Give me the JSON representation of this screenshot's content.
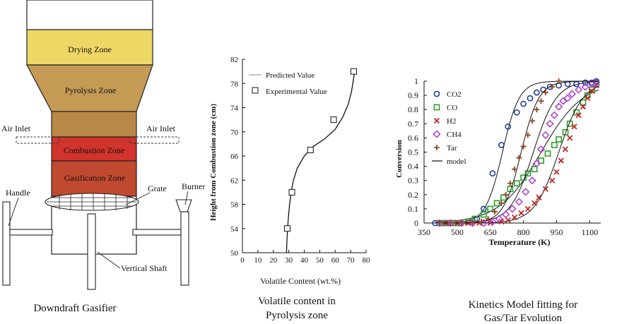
{
  "gasifier": {
    "caption": "Downdraft Gasifier",
    "zones": {
      "drying": "Drying Zone",
      "pyrolysis": "Pyrolysis Zone",
      "combustion": "Combustion  Zone",
      "gasification": "Gasification  Zone"
    },
    "labels": {
      "air_inlet_left": "Air Inlet",
      "air_inlet_right": "Air Inlet",
      "handle": "Handle",
      "grate": "Grate",
      "burner": "Burner",
      "vertical_shaft": "Vertical Shaft"
    },
    "colors": {
      "drying": "#efd766",
      "pyrolysis": "#c49a55",
      "upper_body": "#b88846",
      "combustion": "#d0342c",
      "gasification": "#c0492f"
    }
  },
  "chart_data": [
    {
      "type": "scatter",
      "caption": "Volatile content in Pyrolysis zone",
      "xlabel": "Volatile Content (wt.%)",
      "ylabel": "Height from Combustion zone (cm)",
      "xlim": [
        0,
        80
      ],
      "ylim": [
        50,
        82
      ],
      "xticks": [
        0,
        10,
        20,
        30,
        40,
        50,
        60,
        70,
        80
      ],
      "yticks": [
        50,
        54,
        58,
        62,
        66,
        70,
        74,
        78,
        82
      ],
      "legend": [
        "Predicted Value",
        "Experimental Value"
      ],
      "legend_position": "top-left",
      "grid": false,
      "series": [
        {
          "name": "Predicted Value",
          "kind": "line",
          "points": [
            [
              28.5,
              50
            ],
            [
              28.8,
              52
            ],
            [
              29.2,
              54
            ],
            [
              29.8,
              56
            ],
            [
              30.5,
              58
            ],
            [
              31.5,
              60
            ],
            [
              33.0,
              62
            ],
            [
              35.5,
              64
            ],
            [
              40.0,
              66
            ],
            [
              46.0,
              67.6
            ],
            [
              53.0,
              68.8
            ],
            [
              60.0,
              70.4
            ],
            [
              65.0,
              72.5
            ],
            [
              68.5,
              74.6
            ],
            [
              70.5,
              76.6
            ],
            [
              71.8,
              78.6
            ],
            [
              72.5,
              80
            ]
          ]
        },
        {
          "name": "Experimental Value",
          "kind": "markers",
          "points": [
            [
              29,
              54
            ],
            [
              32,
              60
            ],
            [
              44,
              67
            ],
            [
              59,
              72
            ],
            [
              72,
              80
            ]
          ]
        }
      ]
    },
    {
      "type": "scatter",
      "caption": "Kinetics Model fitting for Gas/Tar Evolution",
      "xlabel": "Temperature (K)",
      "ylabel": "Conversion",
      "xlim": [
        350,
        1150
      ],
      "ylim": [
        0,
        1
      ],
      "xticks": [
        350,
        500,
        650,
        800,
        950,
        1100
      ],
      "yticks": [
        0,
        0.1,
        0.2,
        0.3,
        0.4,
        0.5,
        0.6,
        0.7,
        0.8,
        0.9,
        1
      ],
      "legend": [
        "CO2",
        "CO",
        "H2",
        "CH4",
        "Tar",
        "model"
      ],
      "legend_position": "top-left",
      "grid": false,
      "series": [
        {
          "name": "CO2",
          "marker": "circle",
          "color": "#1f3f9f",
          "mid": 705,
          "width": 38,
          "points": [
            [
              400,
              0
            ],
            [
              430,
              0
            ],
            [
              460,
              0
            ],
            [
              490,
              0
            ],
            [
              520,
              0
            ],
            [
              550,
              0.01
            ],
            [
              590,
              0.03
            ],
            [
              620,
              0.1
            ],
            [
              660,
              0.35
            ],
            [
              700,
              0.55
            ],
            [
              730,
              0.68
            ],
            [
              770,
              0.78
            ],
            [
              800,
              0.84
            ],
            [
              830,
              0.88
            ],
            [
              860,
              0.92
            ],
            [
              890,
              0.94
            ],
            [
              920,
              0.96
            ],
            [
              960,
              0.97
            ],
            [
              1000,
              0.98
            ],
            [
              1040,
              0.98
            ],
            [
              1080,
              0.99
            ],
            [
              1110,
              0.99
            ],
            [
              1130,
              1
            ]
          ]
        },
        {
          "name": "CO",
          "marker": "square",
          "color": "#2ea02c",
          "mid": 880,
          "width": 95,
          "points": [
            [
              420,
              0
            ],
            [
              450,
              0
            ],
            [
              480,
              0
            ],
            [
              510,
              0
            ],
            [
              550,
              0.01
            ],
            [
              580,
              0.03
            ],
            [
              620,
              0.06
            ],
            [
              650,
              0.1
            ],
            [
              680,
              0.14
            ],
            [
              710,
              0.18
            ],
            [
              740,
              0.24
            ],
            [
              770,
              0.28
            ],
            [
              800,
              0.32
            ],
            [
              820,
              0.35
            ],
            [
              850,
              0.38
            ],
            [
              880,
              0.44
            ],
            [
              910,
              0.49
            ],
            [
              940,
              0.55
            ],
            [
              960,
              0.59
            ],
            [
              990,
              0.64
            ],
            [
              1010,
              0.7
            ],
            [
              1040,
              0.78
            ],
            [
              1070,
              0.85
            ],
            [
              1090,
              0.9
            ],
            [
              1110,
              0.94
            ],
            [
              1130,
              0.98
            ]
          ]
        },
        {
          "name": "H2",
          "marker": "x",
          "color": "#c0282a",
          "mid": 960,
          "width": 55,
          "points": [
            [
              450,
              0
            ],
            [
              500,
              0
            ],
            [
              550,
              0
            ],
            [
              600,
              0
            ],
            [
              650,
              0
            ],
            [
              700,
              0.01
            ],
            [
              730,
              0.02
            ],
            [
              760,
              0.04
            ],
            [
              790,
              0.07
            ],
            [
              820,
              0.1
            ],
            [
              850,
              0.14
            ],
            [
              870,
              0.18
            ],
            [
              900,
              0.24
            ],
            [
              930,
              0.3
            ],
            [
              950,
              0.36
            ],
            [
              970,
              0.44
            ],
            [
              990,
              0.52
            ],
            [
              1010,
              0.6
            ],
            [
              1030,
              0.68
            ],
            [
              1050,
              0.76
            ],
            [
              1070,
              0.82
            ],
            [
              1090,
              0.88
            ],
            [
              1110,
              0.93
            ],
            [
              1130,
              0.97
            ]
          ]
        },
        {
          "name": "CH4",
          "marker": "diamond",
          "color": "#b03ad0",
          "mid": 845,
          "width": 52,
          "points": [
            [
              420,
              0
            ],
            [
              470,
              0
            ],
            [
              520,
              0
            ],
            [
              570,
              0
            ],
            [
              620,
              0
            ],
            [
              660,
              0.01
            ],
            [
              690,
              0.03
            ],
            [
              720,
              0.06
            ],
            [
              750,
              0.1
            ],
            [
              780,
              0.15
            ],
            [
              810,
              0.22
            ],
            [
              840,
              0.3
            ],
            [
              860,
              0.42
            ],
            [
              880,
              0.52
            ],
            [
              900,
              0.62
            ],
            [
              920,
              0.7
            ],
            [
              940,
              0.76
            ],
            [
              960,
              0.82
            ],
            [
              980,
              0.86
            ],
            [
              1000,
              0.88
            ],
            [
              1020,
              0.91
            ],
            [
              1050,
              0.94
            ],
            [
              1080,
              0.96
            ],
            [
              1110,
              0.98
            ],
            [
              1130,
              0.99
            ]
          ]
        },
        {
          "name": "Tar",
          "marker": "plus",
          "color": "#8a4a28",
          "mid": 790,
          "width": 40,
          "points": [
            [
              420,
              0
            ],
            [
              470,
              0
            ],
            [
              520,
              0
            ],
            [
              570,
              0
            ],
            [
              610,
              0.01
            ],
            [
              640,
              0.03
            ],
            [
              670,
              0.08
            ],
            [
              700,
              0.14
            ],
            [
              720,
              0.2
            ],
            [
              740,
              0.28
            ],
            [
              760,
              0.38
            ],
            [
              780,
              0.46
            ],
            [
              800,
              0.54
            ],
            [
              820,
              0.62
            ],
            [
              840,
              0.72
            ],
            [
              860,
              0.8
            ],
            [
              880,
              0.86
            ],
            [
              900,
              0.92
            ],
            [
              930,
              0.96
            ],
            [
              960,
              1
            ]
          ]
        }
      ]
    }
  ]
}
